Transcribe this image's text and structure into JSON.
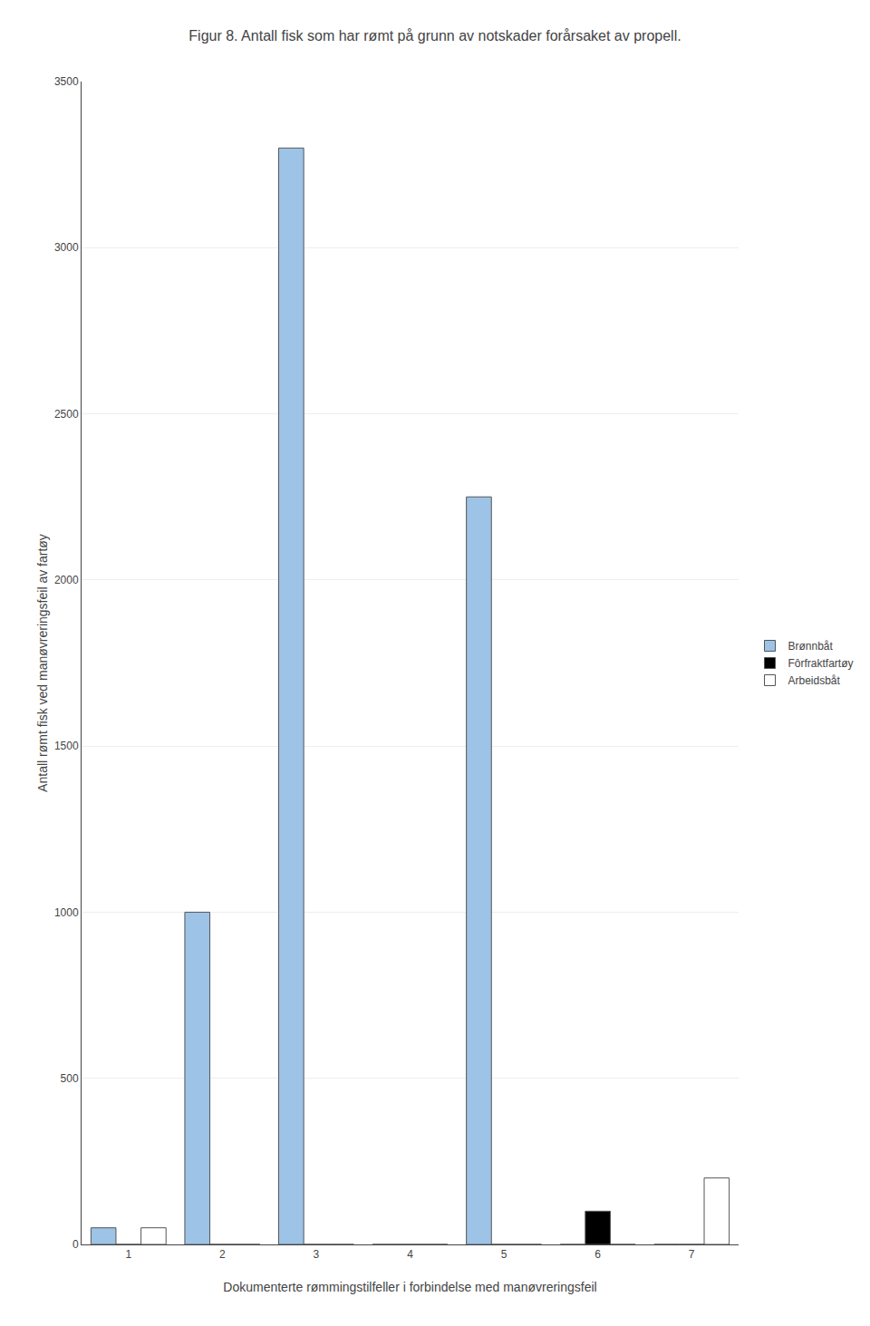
{
  "chart_data": {
    "type": "bar",
    "title": "Figur 8. Antall fisk som har rømt på grunn av notskader forårsaket av propell.",
    "xlabel": "Dokumenterte rømmingstilfeller i forbindelse med manøvreringsfeil",
    "ylabel": "Antall rømt fisk ved manøvreringsfeil av fartøy",
    "x": [
      1,
      2,
      3,
      4,
      5,
      6,
      7
    ],
    "xlim": [
      0.5,
      7.5
    ],
    "xticks": [
      1,
      2,
      3,
      4,
      5,
      6,
      7
    ],
    "ylim": [
      0,
      3500
    ],
    "yticks": [
      0,
      500,
      1000,
      1500,
      2000,
      2500,
      3000,
      3500
    ],
    "grid": "y",
    "legend": "right",
    "series": [
      {
        "name": "Brønnbåt",
        "color": "#9DC3E6",
        "values": [
          50,
          1000,
          3300,
          0,
          2250,
          0,
          0
        ]
      },
      {
        "name": "Fôrfraktfartøy",
        "color": "#000000",
        "values": [
          0,
          0,
          0,
          0,
          0,
          100,
          0
        ]
      },
      {
        "name": "Arbeidsbåt",
        "color": "#FFFFFF",
        "values": [
          50,
          0,
          0,
          0,
          0,
          0,
          200
        ]
      }
    ]
  }
}
